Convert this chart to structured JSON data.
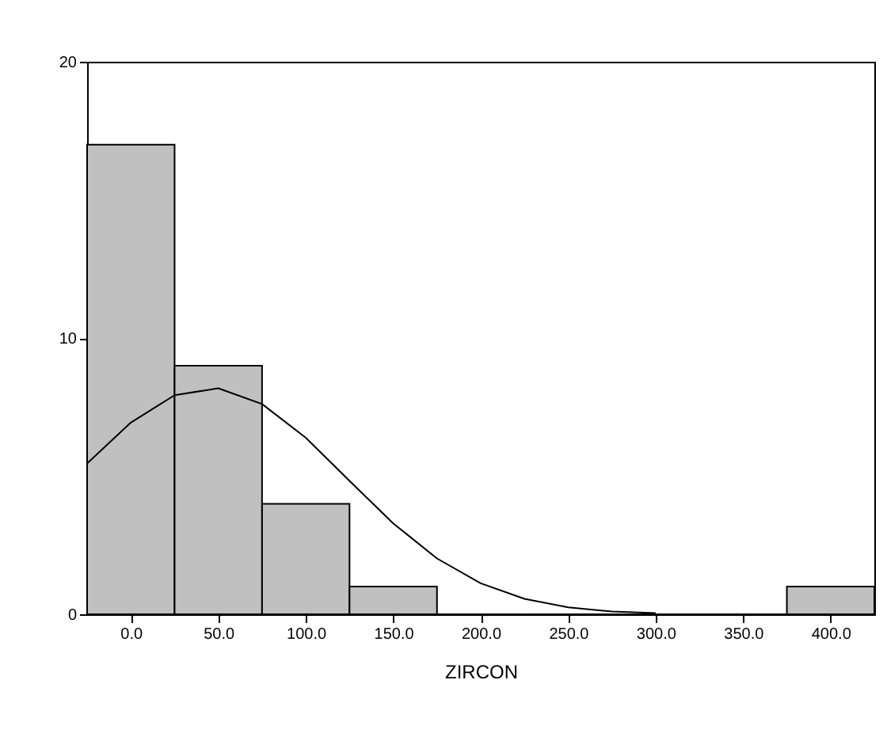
{
  "chart_data": {
    "type": "histogram",
    "xlabel": "ZIRCON",
    "bins": [
      -25,
      25,
      75,
      125,
      175,
      225,
      275,
      325,
      375,
      425
    ],
    "values": [
      17,
      9,
      4,
      1,
      0,
      0,
      0,
      0,
      1
    ],
    "color": "#c0c0c0",
    "series": [
      {
        "type": "line",
        "color": "#000000",
        "x": [
          -25,
          0,
          25,
          50,
          75,
          100,
          125,
          150,
          175,
          200,
          225,
          250,
          275,
          300
        ],
        "values": [
          5.46,
          6.94,
          7.93,
          8.18,
          7.61,
          6.39,
          4.83,
          3.29,
          2.02,
          1.12,
          0.56,
          0.25,
          0.1,
          0.04
        ]
      }
    ],
    "xlim": [
      -25,
      425
    ],
    "ylim": [
      0,
      20
    ],
    "xticks": [
      {
        "value": 0,
        "label": "0.0"
      },
      {
        "value": 50,
        "label": "50.0"
      },
      {
        "value": 100,
        "label": "100.0"
      },
      {
        "value": 150,
        "label": "150.0"
      },
      {
        "value": 200,
        "label": "200.0"
      },
      {
        "value": 250,
        "label": "250.0"
      },
      {
        "value": 300,
        "label": "300.0"
      },
      {
        "value": 350,
        "label": "350.0"
      },
      {
        "value": 400,
        "label": "400.0"
      }
    ],
    "yticks": [
      0,
      10,
      20
    ],
    "grid": false
  }
}
